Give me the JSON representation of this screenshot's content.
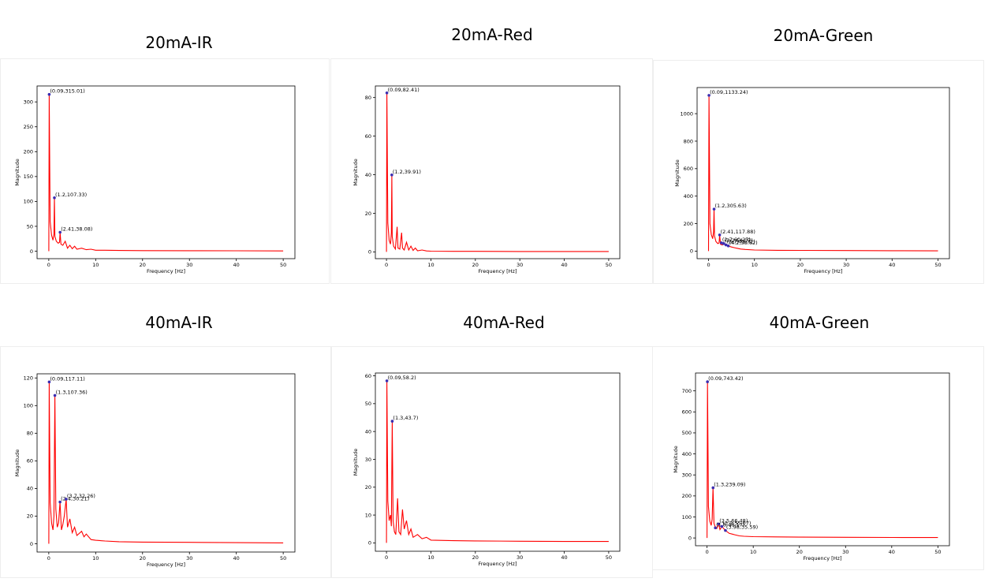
{
  "chart_data": [
    {
      "type": "line",
      "title": "20mA-IR",
      "xlabel": "Frequency [Hz]",
      "ylabel": "Magnitude",
      "xlim": [
        -2.5,
        52.5
      ],
      "ylim": [
        -15,
        332
      ],
      "x_ticks": [
        0,
        10,
        20,
        30,
        40,
        50
      ],
      "y_ticks": [
        0,
        50,
        100,
        150,
        200,
        250,
        300
      ],
      "series": [
        {
          "color": "#ff0000",
          "x": [
            0,
            0.09,
            0.3,
            0.6,
            0.9,
            1.1,
            1.2,
            1.3,
            1.6,
            2.0,
            2.3,
            2.41,
            2.6,
            3.0,
            3.5,
            4.0,
            4.5,
            5.0,
            5.5,
            6.0,
            7.0,
            8.0,
            9.0,
            10.0,
            12.0,
            15.0,
            20.0,
            30.0,
            40.0,
            50.0
          ],
          "y": [
            0,
            315.01,
            60,
            32,
            22,
            35,
            107.33,
            30,
            20,
            16,
            18,
            38.08,
            14,
            12,
            20,
            6,
            12,
            5,
            10,
            4,
            6,
            3,
            4,
            2,
            2,
            1.5,
            1.2,
            1,
            0.8,
            0.5
          ]
        }
      ],
      "peaks": [
        {
          "x": 0.09,
          "y": 315.01,
          "label": "(0.09,315.01)"
        },
        {
          "x": 1.2,
          "y": 107.33,
          "label": "(1.2,107.33)"
        },
        {
          "x": 2.41,
          "y": 38.08,
          "label": "(2.41,38.08)"
        }
      ]
    },
    {
      "type": "line",
      "title": "20mA-Red",
      "xlabel": "Frequency [Hz]",
      "ylabel": "Magnitude",
      "xlim": [
        -2.5,
        52.5
      ],
      "ylim": [
        -3.5,
        86
      ],
      "x_ticks": [
        0,
        10,
        20,
        30,
        40,
        50
      ],
      "y_ticks": [
        0,
        20,
        40,
        60,
        80
      ],
      "series": [
        {
          "color": "#ff0000",
          "x": [
            0,
            0.09,
            0.3,
            0.6,
            0.9,
            1.1,
            1.2,
            1.3,
            1.6,
            2.0,
            2.4,
            2.6,
            3.0,
            3.4,
            3.6,
            4.0,
            4.5,
            5.0,
            5.5,
            6.0,
            6.5,
            7.0,
            8.0,
            9.0,
            10.0,
            15.0,
            20.0,
            30.0,
            40.0,
            50.0
          ],
          "y": [
            0,
            82.41,
            15,
            6,
            4,
            10,
            39.91,
            8,
            3,
            1.5,
            13,
            2,
            1.5,
            10,
            2,
            1,
            5,
            1,
            3,
            0.8,
            2,
            0.6,
            1,
            0.5,
            0.4,
            0.3,
            0.3,
            0.2,
            0.2,
            0.2
          ]
        }
      ],
      "peaks": [
        {
          "x": 0.09,
          "y": 82.41,
          "label": "(0.09,82.41)"
        },
        {
          "x": 1.2,
          "y": 39.91,
          "label": "(1.2,39.91)"
        }
      ]
    },
    {
      "type": "line",
      "title": "20mA-Green",
      "xlabel": "Frequency [Hz]",
      "ylabel": "Magnitude",
      "xlim": [
        -2.5,
        52.5
      ],
      "ylim": [
        -55,
        1190
      ],
      "x_ticks": [
        0,
        10,
        20,
        30,
        40,
        50
      ],
      "y_ticks": [
        0,
        200,
        400,
        600,
        800,
        1000
      ],
      "series": [
        {
          "color": "#ff0000",
          "x": [
            0,
            0.09,
            0.3,
            0.6,
            0.9,
            1.1,
            1.2,
            1.3,
            1.6,
            2.0,
            2.3,
            2.41,
            2.6,
            3.0,
            3.5,
            4.0,
            4.5,
            5.0,
            6.0,
            7.0,
            8.0,
            10.0,
            15.0,
            20.0,
            30.0,
            40.0,
            50.0
          ],
          "y": [
            0,
            1133.24,
            200,
            120,
            90,
            140,
            305.63,
            110,
            70,
            55,
            60,
            117.88,
            50,
            45,
            55,
            40,
            35,
            30,
            22,
            15,
            12,
            8,
            6,
            5,
            4,
            3,
            2
          ]
        }
      ],
      "peaks": [
        {
          "x": 0.09,
          "y": 1133.24,
          "label": "(0.09,1133.24)"
        },
        {
          "x": 1.2,
          "y": 305.63,
          "label": "(1.2,305.63)"
        },
        {
          "x": 2.41,
          "y": 117.88,
          "label": "(2.41,117.88)"
        },
        {
          "x": 2.8,
          "y": 60,
          "label": "(2.7,60.27)"
        },
        {
          "x": 3.3,
          "y": 55,
          "label": "(3.2,54.07)"
        },
        {
          "x": 3.8,
          "y": 45,
          "label": "(3.7,45.72)"
        },
        {
          "x": 4.3,
          "y": 38,
          "label": "(4.2,38.62)"
        }
      ]
    },
    {
      "type": "line",
      "title": "40mA-IR",
      "xlabel": "Frequency [Hz]",
      "ylabel": "Magnitude",
      "xlim": [
        -2.5,
        52.5
      ],
      "ylim": [
        -6,
        123
      ],
      "x_ticks": [
        0,
        10,
        20,
        30,
        40,
        50
      ],
      "y_ticks": [
        0,
        20,
        40,
        60,
        80,
        100,
        120
      ],
      "series": [
        {
          "color": "#ff0000",
          "x": [
            0,
            0.09,
            0.3,
            0.6,
            0.9,
            1.1,
            1.3,
            1.5,
            1.8,
            2.1,
            2.4,
            2.7,
            3.0,
            3.3,
            3.7,
            4.0,
            4.5,
            5.0,
            5.5,
            6.0,
            7.0,
            7.5,
            8.0,
            9.0,
            10.0,
            12.0,
            15.0,
            20.0,
            30.0,
            40.0,
            50.0
          ],
          "y": [
            0,
            117.11,
            30,
            15,
            10,
            20,
            107.36,
            25,
            12,
            15,
            30.21,
            10,
            14,
            20,
            32.26,
            12,
            18,
            8,
            12,
            6,
            9,
            5,
            7,
            3,
            2.5,
            2,
            1.5,
            1.2,
            1,
            0.8,
            0.6
          ]
        }
      ],
      "peaks": [
        {
          "x": 0.09,
          "y": 117.11,
          "label": "(0.09,117.11)"
        },
        {
          "x": 1.3,
          "y": 107.36,
          "label": "(1.3,107.36)"
        },
        {
          "x": 2.4,
          "y": 30.21,
          "label": "(2.4,30.21)"
        },
        {
          "x": 3.7,
          "y": 32.26,
          "label": "(3.7,32.26)"
        }
      ]
    },
    {
      "type": "line",
      "title": "40mA-Red",
      "xlabel": "Frequency [Hz]",
      "ylabel": "Magnitude",
      "xlim": [
        -2.5,
        52.5
      ],
      "ylim": [
        -3,
        61
      ],
      "x_ticks": [
        0,
        10,
        20,
        30,
        40,
        50
      ],
      "y_ticks": [
        0,
        10,
        20,
        30,
        40,
        50,
        60
      ],
      "series": [
        {
          "color": "#ff0000",
          "x": [
            0,
            0.09,
            0.3,
            0.6,
            0.9,
            1.1,
            1.3,
            1.5,
            1.8,
            2.1,
            2.5,
            2.8,
            3.2,
            3.6,
            4.0,
            4.5,
            5.0,
            5.5,
            6.0,
            7.0,
            8.0,
            9.0,
            10.0,
            15.0,
            20.0,
            30.0,
            40.0,
            50.0
          ],
          "y": [
            0,
            58.2,
            15,
            8,
            10,
            6,
            43.7,
            8,
            4,
            3,
            16,
            4,
            3,
            12,
            5,
            8,
            3,
            5,
            2,
            3,
            1.5,
            2,
            1,
            0.8,
            0.7,
            0.6,
            0.5,
            0.5
          ]
        }
      ],
      "peaks": [
        {
          "x": 0.09,
          "y": 58.2,
          "label": "(0.09,58.2)"
        },
        {
          "x": 1.3,
          "y": 43.7,
          "label": "(1.3,43.7)"
        }
      ]
    },
    {
      "type": "line",
      "title": "40mA-Green",
      "xlabel": "Frequency [Hz]",
      "ylabel": "Magnitude",
      "xlim": [
        -2.5,
        52.5
      ],
      "ylim": [
        -37,
        785
      ],
      "x_ticks": [
        0,
        10,
        20,
        30,
        40,
        50
      ],
      "y_ticks": [
        0,
        100,
        200,
        300,
        400,
        500,
        600,
        700
      ],
      "series": [
        {
          "color": "#ff0000",
          "x": [
            0,
            0.09,
            0.3,
            0.6,
            0.9,
            1.1,
            1.3,
            1.5,
            1.8,
            2.1,
            2.5,
            2.8,
            3.2,
            3.6,
            3.98,
            4.3,
            4.8,
            5.5,
            6.0,
            7.0,
            8.0,
            10.0,
            15.0,
            20.0,
            30.0,
            40.0,
            50.0
          ],
          "y": [
            0,
            743.42,
            150,
            80,
            60,
            90,
            239.09,
            70,
            50,
            45,
            66.48,
            40,
            55,
            45,
            35.59,
            30,
            22,
            18,
            15,
            10,
            8,
            6,
            5,
            4,
            3,
            2.5,
            2
          ]
        }
      ],
      "peaks": [
        {
          "x": 0.09,
          "y": 743.42,
          "label": "(0.09,743.42)"
        },
        {
          "x": 1.3,
          "y": 239.09,
          "label": "(1.3,239.09)"
        },
        {
          "x": 2.5,
          "y": 66.48,
          "label": "(2.5,66.48)"
        },
        {
          "x": 3.98,
          "y": 35.59,
          "label": "(3.98,35.59)"
        },
        {
          "x": 1.8,
          "y": 48,
          "label": "(1.8,48.17)"
        },
        {
          "x": 3.2,
          "y": 55,
          "label": "(3.2,55.07)"
        }
      ]
    }
  ]
}
